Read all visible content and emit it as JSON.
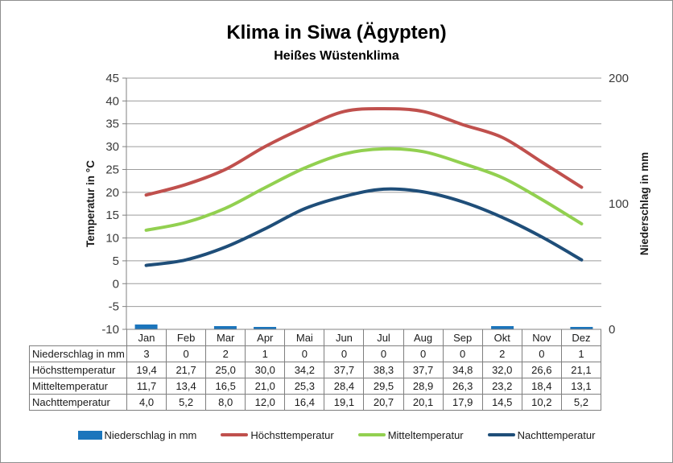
{
  "title": "Klima in Siwa (Ägypten)",
  "subtitle": "Heißes Wüstenklima",
  "chart_data": {
    "type": "combo-bar-line",
    "categories": [
      "Jan",
      "Feb",
      "Mar",
      "Apr",
      "Mai",
      "Jun",
      "Jul",
      "Aug",
      "Sep",
      "Okt",
      "Nov",
      "Dez"
    ],
    "series": [
      {
        "id": "niederschlag",
        "name": "Niederschlag in mm",
        "type": "bar",
        "axis": "right",
        "color": "#1B75BC",
        "values": [
          3,
          0,
          2,
          1,
          0,
          0,
          0,
          0,
          0,
          2,
          0,
          1
        ]
      },
      {
        "id": "hoechsttemperatur",
        "name": "Höchsttemperatur",
        "type": "line",
        "axis": "left",
        "color": "#C0504D",
        "values": [
          19.4,
          21.7,
          25.0,
          30.0,
          34.2,
          37.7,
          38.3,
          37.7,
          34.8,
          32.0,
          26.6,
          21.1
        ]
      },
      {
        "id": "mitteltemperatur",
        "name": "Mitteltemperatur",
        "type": "line",
        "axis": "left",
        "color": "#92D050",
        "values": [
          11.7,
          13.4,
          16.5,
          21.0,
          25.3,
          28.4,
          29.5,
          28.9,
          26.3,
          23.2,
          18.4,
          13.1
        ]
      },
      {
        "id": "nachttemperatur",
        "name": "Nachttemperatur",
        "type": "line",
        "axis": "left",
        "color": "#1F4E79",
        "values": [
          4.0,
          5.2,
          8.0,
          12.0,
          16.4,
          19.1,
          20.7,
          20.1,
          17.9,
          14.5,
          10.2,
          5.2
        ]
      }
    ],
    "left_axis": {
      "label": "Temperatur in °C",
      "min": -10,
      "max": 45,
      "ticks": [
        45,
        40,
        35,
        30,
        25,
        20,
        15,
        10,
        5,
        0,
        -5,
        -10
      ]
    },
    "right_axis": {
      "label": "Niederschlag in mm",
      "min": 0,
      "max": 200,
      "ticks": [
        200,
        100,
        0
      ]
    },
    "grid": true,
    "legend_position": "bottom"
  },
  "table": {
    "rows": [
      {
        "label": "Niederschlag in mm",
        "values": [
          "3",
          "0",
          "2",
          "1",
          "0",
          "0",
          "0",
          "0",
          "0",
          "2",
          "0",
          "1"
        ]
      },
      {
        "label": "Höchsttemperatur",
        "values": [
          "19,4",
          "21,7",
          "25,0",
          "30,0",
          "34,2",
          "37,7",
          "38,3",
          "37,7",
          "34,8",
          "32,0",
          "26,6",
          "21,1"
        ]
      },
      {
        "label": "Mitteltemperatur",
        "values": [
          "11,7",
          "13,4",
          "16,5",
          "21,0",
          "25,3",
          "28,4",
          "29,5",
          "28,9",
          "26,3",
          "23,2",
          "18,4",
          "13,1"
        ]
      },
      {
        "label": "Nachttemperatur",
        "values": [
          "4,0",
          "5,2",
          "8,0",
          "12,0",
          "16,4",
          "19,1",
          "20,7",
          "20,1",
          "17,9",
          "14,5",
          "10,2",
          "5,2"
        ]
      }
    ]
  },
  "colors": {
    "grid": "#9C9C9C",
    "axis": "#808080",
    "table_border": "#7F7F7F"
  }
}
